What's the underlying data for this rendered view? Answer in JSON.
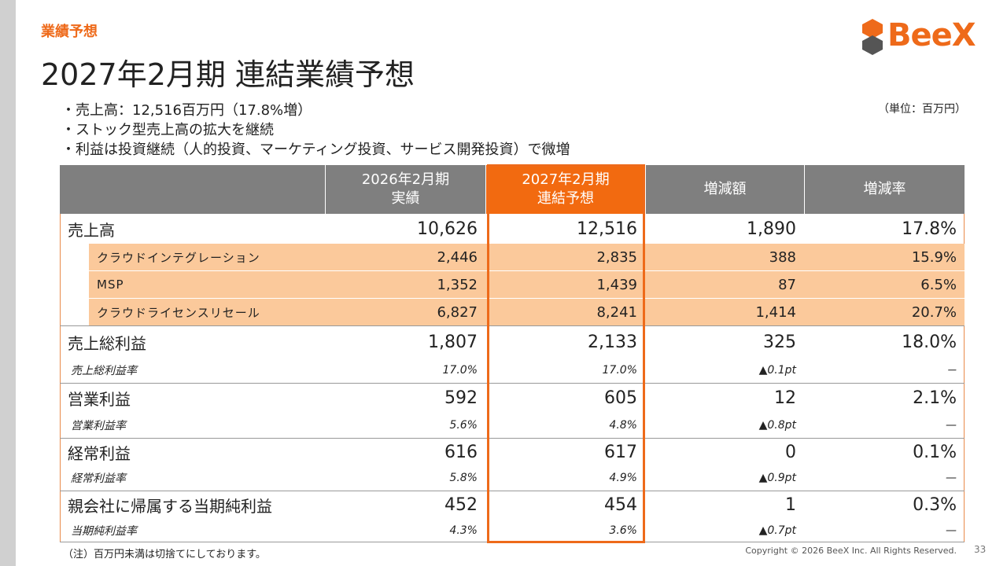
{
  "header": {
    "section": "業績予想",
    "title": "2027年2月期 連結業績予想",
    "logo": "BeeX"
  },
  "bullets": [
    "・売上高：12,516百万円（17.8%増）",
    "・ストック型売上高の拡大を継続",
    "・利益は投資継続（人的投資、マーケティング投資、サービス開発投資）で微増"
  ],
  "unit": "（単位：百万円）",
  "table": {
    "columns": [
      [
        "2026年2月期",
        "実績"
      ],
      [
        "2027年2月期",
        "連結予想"
      ],
      [
        "増減額"
      ],
      [
        "増減率"
      ]
    ],
    "rows": [
      {
        "style": "main",
        "label": "売上高",
        "cells": [
          "10,626",
          "12,516",
          "1,890",
          "17.8%"
        ]
      },
      {
        "style": "sub",
        "label": "クラウドインテグレーション",
        "cells": [
          "2,446",
          "2,835",
          "388",
          "15.9%"
        ]
      },
      {
        "style": "sub",
        "label": "MSP",
        "cells": [
          "1,352",
          "1,439",
          "87",
          "6.5%"
        ]
      },
      {
        "style": "sub",
        "label": "クラウドライセンスリセール",
        "cells": [
          "6,827",
          "8,241",
          "1,414",
          "20.7%"
        ]
      },
      {
        "style": "main",
        "label": "売上総利益",
        "cells": [
          "1,807",
          "2,133",
          "325",
          "18.0%"
        ]
      },
      {
        "style": "ratio",
        "label": "売上総利益率",
        "cells": [
          "17.0%",
          "17.0%",
          "▲0.1pt",
          "－"
        ]
      },
      {
        "style": "main",
        "label": "営業利益",
        "cells": [
          "592",
          "605",
          "12",
          "2.1%"
        ]
      },
      {
        "style": "ratio",
        "label": "営業利益率",
        "cells": [
          "5.6%",
          "4.8%",
          "▲0.8pt",
          "—"
        ]
      },
      {
        "style": "main",
        "label": "経常利益",
        "cells": [
          "616",
          "617",
          "0",
          "0.1%"
        ]
      },
      {
        "style": "ratio",
        "label": "経常利益率",
        "cells": [
          "5.8%",
          "4.9%",
          "▲0.9pt",
          "—"
        ]
      },
      {
        "style": "main",
        "label": "親会社に帰属する当期純利益",
        "cells": [
          "452",
          "454",
          "1",
          "0.3%"
        ]
      },
      {
        "style": "ratio",
        "label": "当期純利益率",
        "cells": [
          "4.3%",
          "3.6%",
          "▲0.7pt",
          "—"
        ]
      }
    ]
  },
  "footer": {
    "note": "（注）百万円未満は切捨てにしております。",
    "copyright": "Copyright © 2026 BeeX Inc. All Rights Reserved.",
    "page": "33"
  }
}
